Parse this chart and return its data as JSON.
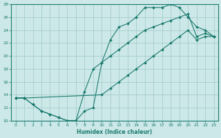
{
  "line1_x": [
    0,
    1,
    2,
    3,
    4,
    5,
    6,
    7,
    8,
    9,
    10,
    11,
    12,
    13,
    14,
    15,
    16,
    17,
    18,
    19,
    20,
    21,
    22,
    23
  ],
  "line1_y": [
    13.5,
    13.5,
    12.5,
    11.5,
    11.0,
    10.5,
    10.0,
    10.0,
    11.5,
    12.0,
    19.0,
    22.5,
    24.5,
    25.0,
    26.0,
    27.5,
    27.5,
    27.5,
    28.0,
    27.5,
    26.0,
    24.5,
    24.0,
    23.0
  ],
  "line2_x": [
    0,
    1,
    10,
    11,
    12,
    13,
    14,
    15,
    16,
    17,
    18,
    19,
    20,
    21,
    22,
    23
  ],
  "line2_y": [
    13.5,
    13.5,
    14.0,
    15.0,
    16.0,
    17.0,
    18.0,
    19.0,
    20.0,
    21.0,
    22.0,
    23.0,
    24.0,
    22.5,
    23.0,
    23.0
  ],
  "line3_x": [
    0,
    1,
    2,
    3,
    4,
    5,
    6,
    7,
    8,
    9,
    10,
    11,
    12,
    13,
    14,
    15,
    16,
    17,
    18,
    19,
    20,
    21,
    22,
    23
  ],
  "line3_y": [
    13.5,
    13.5,
    12.5,
    11.5,
    11.0,
    10.5,
    10.0,
    10.0,
    14.5,
    18.0,
    19.0,
    20.0,
    21.0,
    22.0,
    23.0,
    24.0,
    24.5,
    25.0,
    25.5,
    26.0,
    26.5,
    23.0,
    23.5,
    23.0
  ],
  "color": "#1a7a6e",
  "bg_color": "#cce8e8",
  "grid_color": "#a0c8c8",
  "xlabel": "Humidex (Indice chaleur)",
  "xlim_min": -0.5,
  "xlim_max": 23.5,
  "ylim": [
    10,
    28
  ],
  "yticks": [
    10,
    12,
    14,
    16,
    18,
    20,
    22,
    24,
    26,
    28
  ],
  "xticks": [
    0,
    1,
    2,
    3,
    4,
    5,
    6,
    7,
    8,
    9,
    10,
    11,
    12,
    13,
    14,
    15,
    16,
    17,
    18,
    19,
    20,
    21,
    22,
    23
  ]
}
